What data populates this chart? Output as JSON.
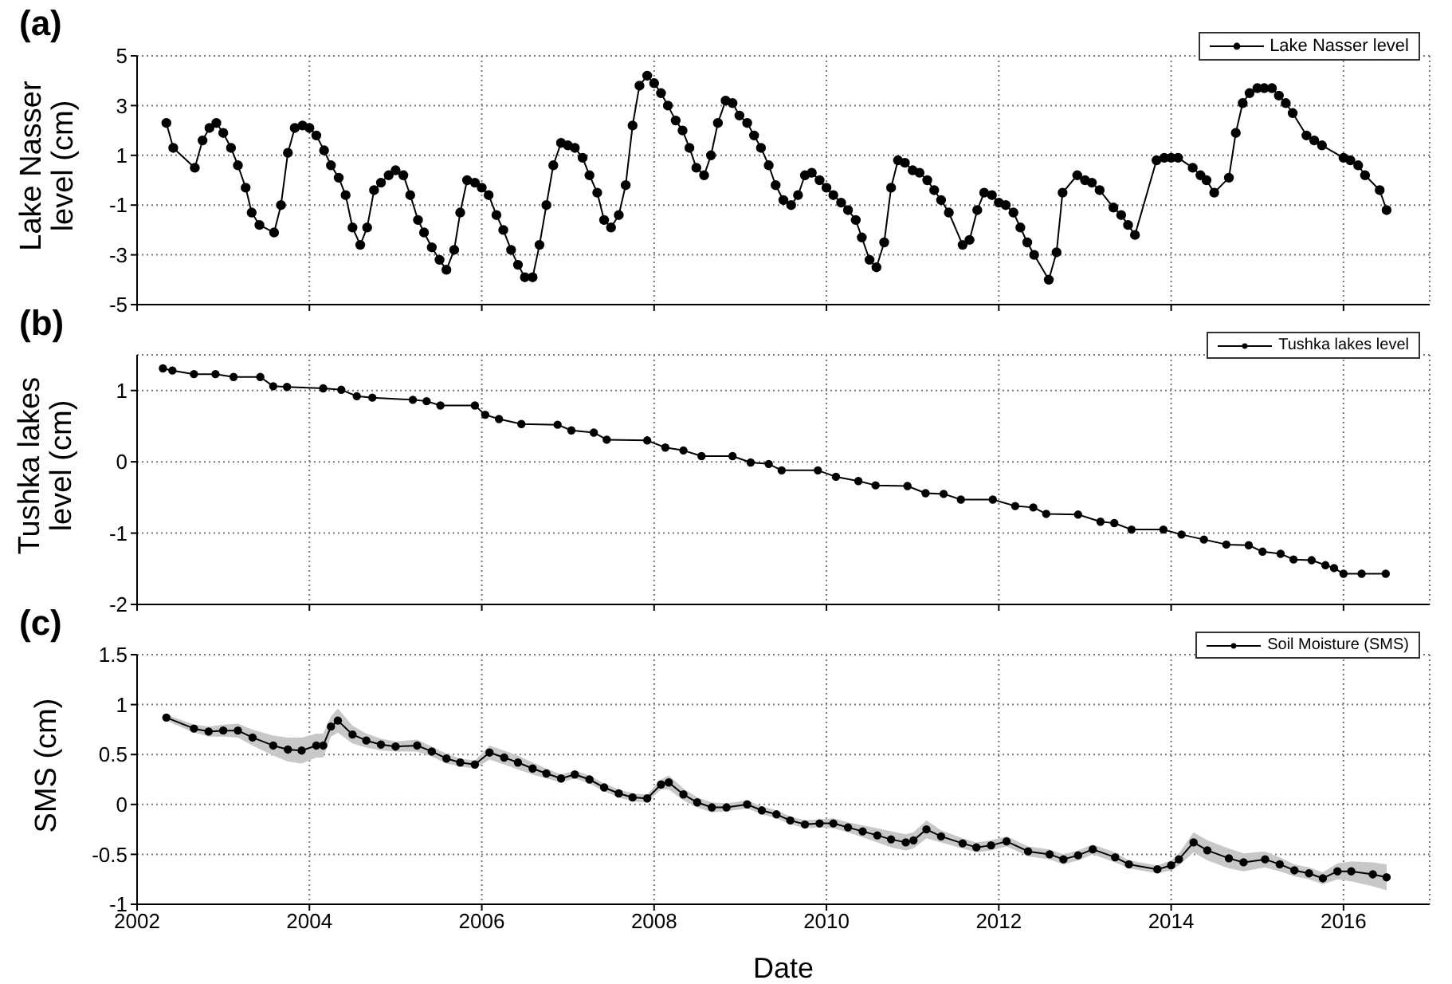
{
  "chart_data": [
    {
      "type": "line",
      "ylabel": "Lake Nasser level (cm)",
      "annotations": [
        "(a)"
      ],
      "xlim": [
        2002,
        2017
      ],
      "xticks": [
        2002,
        2004,
        2006,
        2008,
        2010,
        2012,
        2014,
        2016
      ],
      "ylim": [
        -5,
        5
      ],
      "yticks": [
        -5,
        -3,
        -1,
        1,
        3,
        5
      ],
      "grid": true,
      "legend": "top right",
      "marker": "circle",
      "tick_labels": "y",
      "series": [
        {
          "name": "Lake Nasser level",
          "color": "#000000",
          "x": [
            2002.34,
            2002.42,
            2002.67,
            2002.76,
            2002.84,
            2002.92,
            2003.0,
            2003.09,
            2003.17,
            2003.26,
            2003.33,
            2003.42,
            2003.59,
            2003.67,
            2003.75,
            2003.83,
            2003.92,
            2004.0,
            2004.08,
            2004.17,
            2004.25,
            2004.34,
            2004.42,
            2004.5,
            2004.59,
            2004.67,
            2004.75,
            2004.83,
            2004.92,
            2005.0,
            2005.09,
            2005.17,
            2005.26,
            2005.33,
            2005.42,
            2005.51,
            2005.59,
            2005.68,
            2005.75,
            2005.83,
            2005.92,
            2006.0,
            2006.08,
            2006.17,
            2006.25,
            2006.34,
            2006.42,
            2006.5,
            2006.59,
            2006.67,
            2006.75,
            2006.83,
            2006.92,
            2007.0,
            2007.08,
            2007.17,
            2007.25,
            2007.34,
            2007.42,
            2007.5,
            2007.59,
            2007.67,
            2007.75,
            2007.83,
            2007.92,
            2008.0,
            2008.08,
            2008.16,
            2008.25,
            2008.33,
            2008.41,
            2008.49,
            2008.58,
            2008.66,
            2008.74,
            2008.83,
            2008.91,
            2008.99,
            2009.08,
            2009.16,
            2009.24,
            2009.33,
            2009.41,
            2009.5,
            2009.59,
            2009.67,
            2009.75,
            2009.83,
            2009.92,
            2010.0,
            2010.08,
            2010.17,
            2010.25,
            2010.34,
            2010.41,
            2010.5,
            2010.58,
            2010.67,
            2010.75,
            2010.83,
            2010.91,
            2011.0,
            2011.08,
            2011.17,
            2011.25,
            2011.33,
            2011.42,
            2011.58,
            2011.66,
            2011.75,
            2011.83,
            2011.92,
            2012.0,
            2012.08,
            2012.17,
            2012.25,
            2012.33,
            2012.41,
            2012.58,
            2012.67,
            2012.74,
            2012.91,
            2013.0,
            2013.08,
            2013.17,
            2013.33,
            2013.42,
            2013.5,
            2013.58,
            2013.83,
            2013.92,
            2014.0,
            2014.08,
            2014.25,
            2014.34,
            2014.41,
            2014.5,
            2014.67,
            2014.75,
            2014.83,
            2014.91,
            2015.0,
            2015.08,
            2015.17,
            2015.25,
            2015.33,
            2015.41,
            2015.57,
            2015.66,
            2015.75,
            2016.0,
            2016.08,
            2016.17,
            2016.25,
            2016.42,
            2016.5
          ],
          "values": [
            2.3,
            1.3,
            0.5,
            1.6,
            2.1,
            2.3,
            1.9,
            1.3,
            0.6,
            -0.3,
            -1.3,
            -1.8,
            -2.1,
            -1.0,
            1.1,
            2.1,
            2.2,
            2.1,
            1.8,
            1.2,
            0.6,
            0.1,
            -0.6,
            -1.9,
            -2.6,
            -1.9,
            -0.4,
            -0.1,
            0.2,
            0.4,
            0.2,
            -0.6,
            -1.6,
            -2.1,
            -2.7,
            -3.2,
            -3.6,
            -2.8,
            -1.3,
            0.0,
            -0.1,
            -0.3,
            -0.6,
            -1.4,
            -2.0,
            -2.8,
            -3.4,
            -3.9,
            -3.9,
            -2.6,
            -1.0,
            0.6,
            1.5,
            1.4,
            1.3,
            0.9,
            0.2,
            -0.5,
            -1.6,
            -1.9,
            -1.4,
            -0.2,
            2.2,
            3.8,
            4.2,
            3.9,
            3.5,
            3.0,
            2.4,
            2.0,
            1.3,
            0.5,
            0.2,
            1.0,
            2.3,
            3.2,
            3.1,
            2.6,
            2.3,
            1.8,
            1.3,
            0.6,
            -0.2,
            -0.8,
            -1.0,
            -0.6,
            0.2,
            0.3,
            0.0,
            -0.3,
            -0.6,
            -0.9,
            -1.2,
            -1.6,
            -2.3,
            -3.2,
            -3.5,
            -2.5,
            -0.3,
            0.8,
            0.7,
            0.4,
            0.3,
            0.0,
            -0.4,
            -0.8,
            -1.3,
            -2.6,
            -2.4,
            -1.2,
            -0.5,
            -0.6,
            -0.9,
            -1.0,
            -1.3,
            -1.9,
            -2.5,
            -3.0,
            -4.0,
            -2.9,
            -0.5,
            0.2,
            0.0,
            -0.1,
            -0.4,
            -1.1,
            -1.4,
            -1.8,
            -2.2,
            0.8,
            0.9,
            0.9,
            0.9,
            0.5,
            0.2,
            0.0,
            -0.5,
            0.1,
            1.9,
            3.1,
            3.5,
            3.7,
            3.7,
            3.7,
            3.4,
            3.1,
            2.7,
            1.8,
            1.6,
            1.4,
            0.9,
            0.8,
            0.6,
            0.2,
            -0.4,
            -1.2
          ]
        }
      ]
    },
    {
      "type": "line",
      "ylabel": "Tushka lakes level (cm)",
      "annotations": [
        "(b)"
      ],
      "xlim": [
        2002,
        2017
      ],
      "xticks": [
        2002,
        2004,
        2006,
        2008,
        2010,
        2012,
        2014,
        2016
      ],
      "ylim": [
        -2,
        1.5
      ],
      "yticks": [
        -2,
        -1,
        0,
        1
      ],
      "grid": true,
      "legend": "top right",
      "marker": "circle",
      "tick_labels": "y",
      "series": [
        {
          "name": "Tushka lakes level",
          "color": "#000000",
          "x": [
            2002.3,
            2002.41,
            2002.66,
            2002.91,
            2003.12,
            2003.43,
            2003.58,
            2003.74,
            2004.16,
            2004.37,
            2004.55,
            2004.73,
            2005.2,
            2005.36,
            2005.52,
            2005.92,
            2006.04,
            2006.2,
            2006.46,
            2006.88,
            2007.04,
            2007.3,
            2007.45,
            2007.92,
            2008.13,
            2008.34,
            2008.55,
            2008.91,
            2009.12,
            2009.33,
            2009.48,
            2009.9,
            2010.11,
            2010.37,
            2010.57,
            2010.94,
            2011.15,
            2011.36,
            2011.56,
            2011.93,
            2012.19,
            2012.4,
            2012.55,
            2012.92,
            2013.18,
            2013.34,
            2013.54,
            2013.91,
            2014.12,
            2014.38,
            2014.64,
            2014.9,
            2015.06,
            2015.27,
            2015.42,
            2015.63,
            2015.79,
            2015.89,
            2016.0,
            2016.21,
            2016.49
          ],
          "values": [
            1.31,
            1.28,
            1.23,
            1.23,
            1.19,
            1.19,
            1.06,
            1.05,
            1.03,
            1.01,
            0.92,
            0.9,
            0.87,
            0.85,
            0.79,
            0.79,
            0.66,
            0.6,
            0.53,
            0.52,
            0.44,
            0.41,
            0.31,
            0.3,
            0.2,
            0.16,
            0.08,
            0.08,
            -0.01,
            -0.03,
            -0.12,
            -0.12,
            -0.21,
            -0.27,
            -0.33,
            -0.34,
            -0.44,
            -0.45,
            -0.53,
            -0.53,
            -0.62,
            -0.64,
            -0.73,
            -0.74,
            -0.84,
            -0.86,
            -0.95,
            -0.95,
            -1.02,
            -1.09,
            -1.16,
            -1.17,
            -1.26,
            -1.29,
            -1.37,
            -1.38,
            -1.45,
            -1.49,
            -1.57,
            -1.57,
            -1.57
          ]
        }
      ]
    },
    {
      "type": "line",
      "xlabel": "Date",
      "ylabel": "SMS (cm)",
      "annotations": [
        "(c)"
      ],
      "xlim": [
        2002,
        2017
      ],
      "xticks": [
        2002,
        2004,
        2006,
        2008,
        2010,
        2012,
        2014,
        2016
      ],
      "ylim": [
        -1,
        1.5
      ],
      "yticks": [
        -1,
        -0.5,
        0,
        0.5,
        1,
        1.5
      ],
      "grid": true,
      "legend": "top right",
      "marker": "circle",
      "series": [
        {
          "name": "Soil Moisture (SMS)",
          "color": "#000000",
          "x": [
            2002.34,
            2002.66,
            2002.83,
            2003.0,
            2003.17,
            2003.34,
            2003.58,
            2003.75,
            2003.91,
            2004.08,
            2004.16,
            2004.25,
            2004.33,
            2004.5,
            2004.66,
            2004.83,
            2005.0,
            2005.25,
            2005.42,
            2005.59,
            2005.75,
            2005.92,
            2006.09,
            2006.26,
            2006.42,
            2006.59,
            2006.75,
            2006.92,
            2007.08,
            2007.25,
            2007.42,
            2007.59,
            2007.75,
            2007.92,
            2008.08,
            2008.17,
            2008.34,
            2008.5,
            2008.67,
            2008.84,
            2009.08,
            2009.25,
            2009.42,
            2009.58,
            2009.75,
            2009.92,
            2010.08,
            2010.25,
            2010.42,
            2010.59,
            2010.75,
            2010.92,
            2011.01,
            2011.16,
            2011.33,
            2011.58,
            2011.74,
            2011.91,
            2012.09,
            2012.34,
            2012.59,
            2012.75,
            2012.92,
            2013.09,
            2013.35,
            2013.51,
            2013.84,
            2014.0,
            2014.09,
            2014.26,
            2014.42,
            2014.67,
            2014.84,
            2015.09,
            2015.26,
            2015.43,
            2015.6,
            2015.76,
            2015.93,
            2016.09,
            2016.34,
            2016.5
          ],
          "values": [
            0.87,
            0.76,
            0.73,
            0.74,
            0.74,
            0.67,
            0.59,
            0.55,
            0.54,
            0.59,
            0.59,
            0.78,
            0.84,
            0.7,
            0.64,
            0.6,
            0.58,
            0.59,
            0.53,
            0.46,
            0.42,
            0.4,
            0.52,
            0.47,
            0.42,
            0.36,
            0.31,
            0.26,
            0.3,
            0.25,
            0.17,
            0.11,
            0.07,
            0.06,
            0.2,
            0.22,
            0.1,
            0.02,
            -0.03,
            -0.03,
            0.0,
            -0.06,
            -0.1,
            -0.16,
            -0.2,
            -0.19,
            -0.19,
            -0.23,
            -0.27,
            -0.31,
            -0.35,
            -0.38,
            -0.36,
            -0.25,
            -0.32,
            -0.39,
            -0.43,
            -0.41,
            -0.37,
            -0.47,
            -0.5,
            -0.55,
            -0.51,
            -0.45,
            -0.53,
            -0.6,
            -0.65,
            -0.61,
            -0.55,
            -0.38,
            -0.46,
            -0.54,
            -0.58,
            -0.55,
            -0.6,
            -0.66,
            -0.69,
            -0.74,
            -0.67,
            -0.67,
            -0.7,
            -0.73
          ],
          "lower": [
            0.84,
            0.72,
            0.68,
            0.68,
            0.67,
            0.59,
            0.49,
            0.43,
            0.41,
            0.47,
            0.47,
            0.68,
            0.72,
            0.61,
            0.57,
            0.54,
            0.53,
            0.53,
            0.48,
            0.41,
            0.38,
            0.36,
            0.45,
            0.4,
            0.35,
            0.3,
            0.26,
            0.22,
            0.26,
            0.21,
            0.13,
            0.07,
            0.03,
            0.02,
            0.15,
            0.15,
            0.04,
            -0.03,
            -0.08,
            -0.07,
            -0.04,
            -0.1,
            -0.14,
            -0.2,
            -0.24,
            -0.23,
            -0.24,
            -0.28,
            -0.33,
            -0.38,
            -0.43,
            -0.46,
            -0.44,
            -0.34,
            -0.38,
            -0.44,
            -0.48,
            -0.46,
            -0.42,
            -0.52,
            -0.55,
            -0.6,
            -0.56,
            -0.5,
            -0.58,
            -0.64,
            -0.69,
            -0.66,
            -0.61,
            -0.48,
            -0.56,
            -0.64,
            -0.67,
            -0.63,
            -0.67,
            -0.72,
            -0.75,
            -0.8,
            -0.75,
            -0.77,
            -0.82,
            -0.86
          ],
          "upper": [
            0.9,
            0.8,
            0.78,
            0.8,
            0.81,
            0.75,
            0.69,
            0.67,
            0.67,
            0.71,
            0.71,
            0.88,
            0.96,
            0.79,
            0.71,
            0.66,
            0.63,
            0.65,
            0.58,
            0.51,
            0.46,
            0.44,
            0.59,
            0.54,
            0.49,
            0.42,
            0.36,
            0.3,
            0.34,
            0.29,
            0.21,
            0.15,
            0.11,
            0.1,
            0.25,
            0.29,
            0.16,
            0.07,
            0.02,
            0.01,
            0.04,
            -0.02,
            -0.06,
            -0.12,
            -0.16,
            -0.15,
            -0.14,
            -0.18,
            -0.21,
            -0.24,
            -0.27,
            -0.3,
            -0.28,
            -0.16,
            -0.26,
            -0.34,
            -0.38,
            -0.36,
            -0.32,
            -0.42,
            -0.45,
            -0.5,
            -0.46,
            -0.4,
            -0.48,
            -0.56,
            -0.61,
            -0.56,
            -0.49,
            -0.28,
            -0.36,
            -0.44,
            -0.49,
            -0.47,
            -0.53,
            -0.6,
            -0.63,
            -0.68,
            -0.59,
            -0.57,
            -0.58,
            -0.6
          ]
        }
      ]
    }
  ]
}
